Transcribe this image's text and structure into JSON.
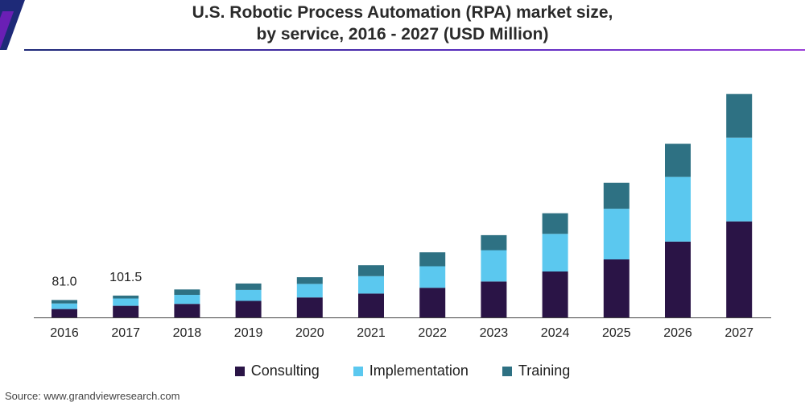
{
  "chart_data": {
    "type": "bar",
    "stacked": true,
    "title_line1": "U.S. Robotic Process Automation (RPA) market size,",
    "title_line2": "by service, 2016 - 2027 (USD Million)",
    "categories": [
      "2016",
      "2017",
      "2018",
      "2019",
      "2020",
      "2021",
      "2022",
      "2023",
      "2024",
      "2025",
      "2026",
      "2027"
    ],
    "series": [
      {
        "name": "Consulting",
        "color": "#2a1446",
        "values": [
          39,
          54,
          63,
          77,
          93,
          111,
          138,
          167,
          214,
          270,
          353,
          447
        ]
      },
      {
        "name": "Implementation",
        "color": "#5bc8ef",
        "values": [
          26,
          34,
          42,
          51,
          63,
          81,
          100,
          146,
          175,
          236,
          301,
          390
        ]
      },
      {
        "name": "Training",
        "color": "#2e7183",
        "values": [
          16,
          13.5,
          25,
          30,
          31,
          51,
          65,
          70,
          96,
          121,
          154,
          203
        ]
      }
    ],
    "data_labels": [
      {
        "category": "2016",
        "text": "81.0"
      },
      {
        "category": "2017",
        "text": "101.5"
      }
    ],
    "ylim": [
      0,
      1050
    ],
    "xlabel": "",
    "ylabel": "",
    "legend_position": "bottom",
    "grid": false
  },
  "source": "Source: www.grandviewresearch.com"
}
